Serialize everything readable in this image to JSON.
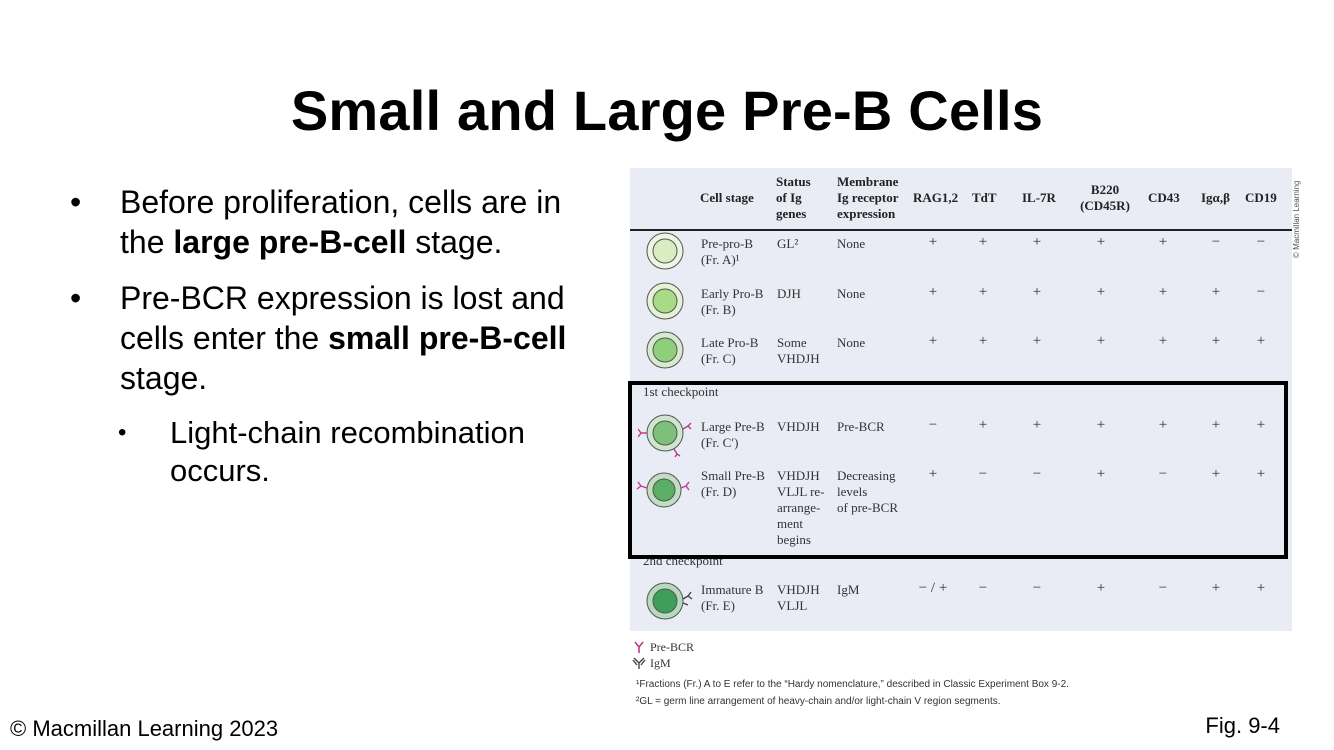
{
  "title": "Small and Large Pre-B Cells",
  "bullets": {
    "b1_pre": "Before proliferation, cells are in the ",
    "b1_bold": "large pre-B-cell",
    "b1_post": " stage.",
    "b2_pre": "Pre-BCR expression is lost and cells enter the ",
    "b2_bold": "small pre-B-cell",
    "b2_post": " stage.",
    "sub1": "Light-chain recombination occurs.",
    "dot": "•"
  },
  "figure": {
    "headers": {
      "cell_stage": "Cell stage",
      "status": [
        "Status",
        "of Ig",
        "genes"
      ],
      "membrane": [
        "Membrane",
        "Ig receptor",
        "expression"
      ],
      "rag": "RAG1,2",
      "tdt": "TdT",
      "il7r": "IL-7R",
      "b220": [
        "B220",
        "(CD45R)"
      ],
      "cd43": "CD43",
      "igab": "Igα,β",
      "cd19": "CD19"
    },
    "rows": [
      {
        "stage": [
          "Pre-pro-B",
          "(Fr. A)¹"
        ],
        "status": [
          "GL²"
        ],
        "membrane": [
          "None"
        ],
        "markers": [
          "+",
          "+",
          "+",
          "+",
          "+",
          "−",
          "−"
        ]
      },
      {
        "stage": [
          "Early Pro-B",
          "(Fr. B)"
        ],
        "status": [
          "DJH"
        ],
        "membrane": [
          "None"
        ],
        "markers": [
          "+",
          "+",
          "+",
          "+",
          "+",
          "+",
          "−"
        ]
      },
      {
        "stage": [
          "Late Pro-B",
          "(Fr. C)"
        ],
        "status": [
          "Some",
          "VHDJH"
        ],
        "membrane": [
          "None"
        ],
        "markers": [
          "+",
          "+",
          "+",
          "+",
          "+",
          "+",
          "+"
        ]
      },
      {
        "stage": [
          "Large Pre-B",
          "(Fr. C′)"
        ],
        "status": [
          "VHDJH"
        ],
        "membrane": [
          "Pre-BCR"
        ],
        "markers": [
          "−",
          "+",
          "+",
          "+",
          "+",
          "+",
          "+"
        ]
      },
      {
        "stage": [
          "Small Pre-B",
          "(Fr. D)"
        ],
        "status": [
          "VHDJH",
          "VLJL re-",
          "arrange-",
          "ment",
          "begins"
        ],
        "membrane": [
          "Decreasing",
          "levels",
          "of pre-BCR"
        ],
        "markers": [
          "+",
          "−",
          "−",
          "+",
          "−",
          "+",
          "+"
        ]
      },
      {
        "stage": [
          "Immature B",
          "(Fr. E)"
        ],
        "status": [
          "VHDJH",
          "VLJL"
        ],
        "membrane": [
          "IgM"
        ],
        "markers": [
          "− / +",
          "−",
          "−",
          "+",
          "−",
          "+",
          "+"
        ]
      }
    ],
    "checkpoint1": "1st checkpoint",
    "checkpoint2": "2nd checkpoint",
    "legend_prebcr": "Pre-BCR",
    "legend_igm": "IgM",
    "footnote1": "¹Fractions (Fr.) A to E refer to the “Hardy nomenclature,” described in Classic Experiment Box 9-2.",
    "footnote2": "²GL = germ line arrangement of heavy-chain and/or light-chain V region segments.",
    "side_credit": "© Macmillan Learning",
    "colors": {
      "cell_light": "#d8eec0",
      "cell_mid": "#8fcf7c",
      "cell_dark": "#3f9e5a",
      "receptor": "#c0398a",
      "igm": "#444444"
    }
  },
  "footer": {
    "copyright": "© Macmillan Learning 2023",
    "fig_number": "Fig. 9-4"
  }
}
